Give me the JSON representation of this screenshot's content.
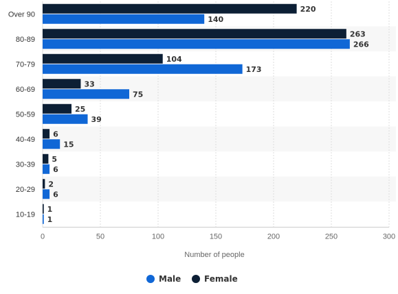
{
  "chart_data": {
    "type": "bar",
    "orientation": "horizontal",
    "categories": [
      "Over 90",
      "80-89",
      "70-79",
      "60-69",
      "50-59",
      "40-49",
      "30-39",
      "20-29",
      "10-19"
    ],
    "series": [
      {
        "name": "Female",
        "color": "#0c1f35",
        "values": [
          220,
          263,
          104,
          33,
          25,
          6,
          5,
          2,
          1
        ]
      },
      {
        "name": "Male",
        "color": "#1067d6",
        "values": [
          140,
          266,
          173,
          75,
          39,
          15,
          6,
          6,
          1
        ]
      }
    ],
    "xlabel": "Number of people",
    "ylabel": "",
    "xlim": [
      0,
      300
    ],
    "xticks": [
      0,
      50,
      100,
      150,
      200,
      250,
      300
    ],
    "grid": true,
    "legend": {
      "position": "bottom-center",
      "items": [
        {
          "name": "Male",
          "color": "#1067d6"
        },
        {
          "name": "Female",
          "color": "#0c1f35"
        }
      ]
    }
  }
}
